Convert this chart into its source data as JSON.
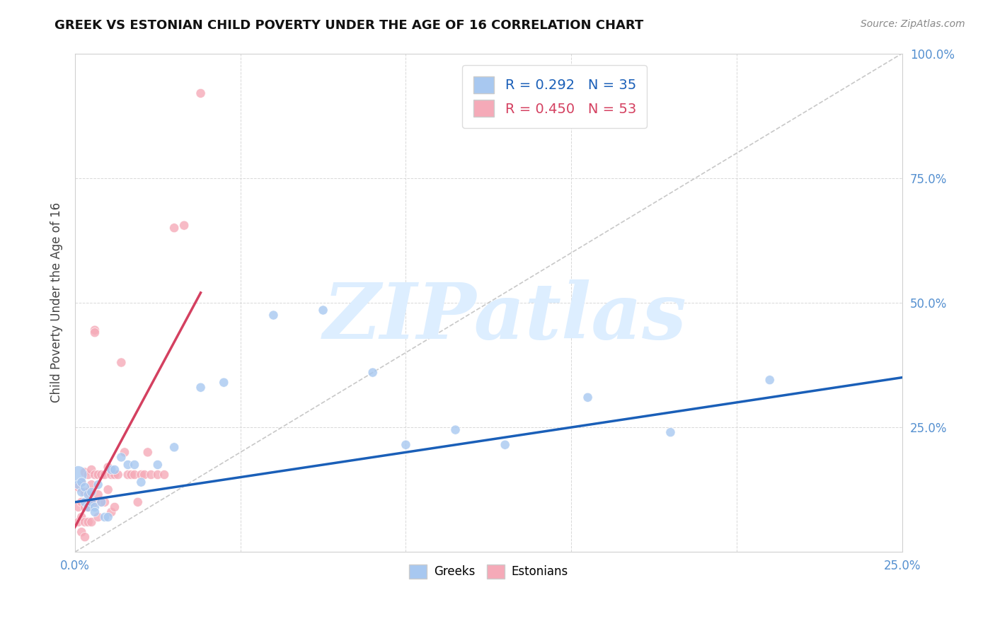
{
  "title": "GREEK VS ESTONIAN CHILD POVERTY UNDER THE AGE OF 16 CORRELATION CHART",
  "source": "Source: ZipAtlas.com",
  "ylabel": "Child Poverty Under the Age of 16",
  "xlim": [
    0.0,
    0.25
  ],
  "ylim": [
    0.0,
    1.0
  ],
  "xticks": [
    0.0,
    0.05,
    0.1,
    0.15,
    0.2,
    0.25
  ],
  "yticks": [
    0.0,
    0.25,
    0.5,
    0.75,
    1.0
  ],
  "greek_R": 0.292,
  "greek_N": 35,
  "estonian_R": 0.45,
  "estonian_N": 53,
  "greek_color": "#a8c8f0",
  "estonian_color": "#f5aab8",
  "greek_line_color": "#1a5fb8",
  "estonian_line_color": "#d44060",
  "diagonal_color": "#c8c8c8",
  "background_color": "#ffffff",
  "watermark": "ZIPatlas",
  "watermark_color": "#ddeeff",
  "legend_label_greek": "Greeks",
  "legend_label_estonian": "Estonians",
  "greeks_x": [
    0.001,
    0.001,
    0.002,
    0.002,
    0.003,
    0.003,
    0.004,
    0.004,
    0.005,
    0.005,
    0.006,
    0.006,
    0.007,
    0.008,
    0.009,
    0.01,
    0.011,
    0.012,
    0.014,
    0.016,
    0.018,
    0.02,
    0.025,
    0.03,
    0.038,
    0.045,
    0.06,
    0.075,
    0.09,
    0.1,
    0.115,
    0.13,
    0.155,
    0.18,
    0.21
  ],
  "greeks_y": [
    0.155,
    0.135,
    0.14,
    0.12,
    0.13,
    0.1,
    0.115,
    0.09,
    0.12,
    0.1,
    0.09,
    0.08,
    0.135,
    0.1,
    0.07,
    0.07,
    0.165,
    0.165,
    0.19,
    0.175,
    0.175,
    0.14,
    0.175,
    0.21,
    0.33,
    0.34,
    0.475,
    0.485,
    0.36,
    0.215,
    0.245,
    0.215,
    0.31,
    0.24,
    0.345
  ],
  "greeks_size": [
    320,
    90,
    90,
    90,
    90,
    90,
    90,
    90,
    90,
    90,
    90,
    90,
    90,
    90,
    90,
    90,
    90,
    90,
    90,
    90,
    90,
    90,
    90,
    90,
    90,
    90,
    90,
    90,
    90,
    90,
    90,
    90,
    90,
    90,
    90
  ],
  "estonians_x": [
    0.001,
    0.001,
    0.001,
    0.002,
    0.002,
    0.002,
    0.002,
    0.003,
    0.003,
    0.003,
    0.003,
    0.003,
    0.004,
    0.004,
    0.004,
    0.004,
    0.005,
    0.005,
    0.005,
    0.005,
    0.006,
    0.006,
    0.006,
    0.006,
    0.007,
    0.007,
    0.007,
    0.008,
    0.008,
    0.009,
    0.009,
    0.01,
    0.01,
    0.011,
    0.011,
    0.012,
    0.012,
    0.013,
    0.014,
    0.015,
    0.016,
    0.017,
    0.018,
    0.019,
    0.02,
    0.021,
    0.022,
    0.023,
    0.025,
    0.027,
    0.03,
    0.033,
    0.038
  ],
  "estonians_y": [
    0.13,
    0.09,
    0.06,
    0.14,
    0.1,
    0.07,
    0.04,
    0.16,
    0.12,
    0.09,
    0.06,
    0.03,
    0.155,
    0.12,
    0.09,
    0.06,
    0.165,
    0.135,
    0.105,
    0.06,
    0.445,
    0.44,
    0.155,
    0.1,
    0.155,
    0.115,
    0.07,
    0.155,
    0.1,
    0.155,
    0.1,
    0.17,
    0.125,
    0.155,
    0.08,
    0.155,
    0.09,
    0.155,
    0.38,
    0.2,
    0.155,
    0.155,
    0.155,
    0.1,
    0.155,
    0.155,
    0.2,
    0.155,
    0.155,
    0.155,
    0.65,
    0.655,
    0.92
  ],
  "estonians_size": [
    90,
    90,
    90,
    90,
    90,
    90,
    90,
    90,
    90,
    90,
    90,
    90,
    90,
    90,
    90,
    90,
    90,
    90,
    90,
    90,
    90,
    90,
    90,
    90,
    90,
    90,
    90,
    90,
    90,
    90,
    90,
    90,
    90,
    90,
    90,
    90,
    90,
    90,
    90,
    90,
    90,
    90,
    90,
    90,
    90,
    90,
    90,
    90,
    90,
    90,
    90,
    90,
    90
  ]
}
